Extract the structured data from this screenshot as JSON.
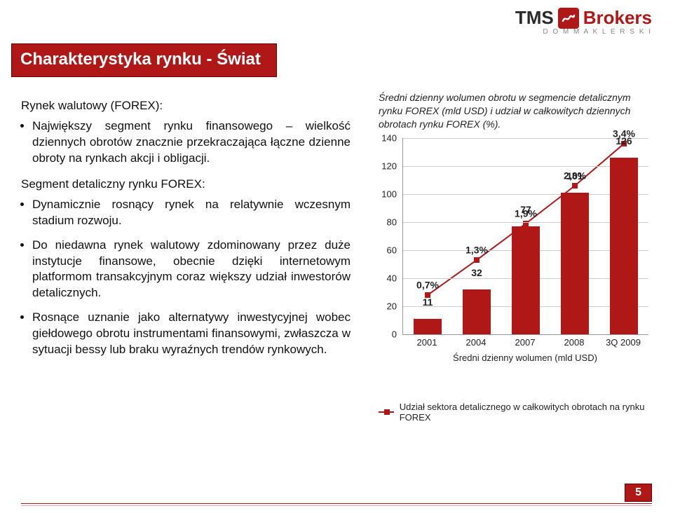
{
  "logo": {
    "tms": "TMS",
    "brokers": "Brokers",
    "sub": "D O M   M A K L E R S K I"
  },
  "title": "Charakterystyka rynku - Świat",
  "left": {
    "lead": "Rynek walutowy (FOREX):",
    "bullets1": [
      "Największy segment rynku finansowego – wielkość dziennych obrotów znacznie przekraczająca łączne dzienne obroty na rynkach akcji i obligacji."
    ],
    "sub_head": "Segment detaliczny rynku FOREX:",
    "bullets2": [
      "Dynamicznie rosnący rynek na relatywnie wczesnym stadium rozwoju.",
      "Do niedawna rynek walutowy zdominowany przez duże instytucje finansowe, obecnie dzięki internetowym platformom transakcyjnym coraz większy udział inwestorów detalicznych.",
      "Rosnące uznanie jako alternatywy inwestycyjnej wobec giełdowego obrotu instrumentami finansowymi, zwłaszcza w sytuacji bessy lub braku wyraźnych trendów rynkowych."
    ]
  },
  "chart": {
    "caption": "Średni dzienny wolumen obrotu w segmencie detalicznym rynku FOREX (mld USD) i udział w całkowitych dziennych obrotach rynku FOREX (%).",
    "type": "bar+line",
    "ylim": [
      0,
      140
    ],
    "ytick_step": 20,
    "yticks": [
      0,
      20,
      40,
      60,
      80,
      100,
      120,
      140
    ],
    "categories": [
      "2001",
      "2004",
      "2007",
      "2008",
      "3Q 2009"
    ],
    "bar_values": [
      11,
      32,
      77,
      101,
      126
    ],
    "bar_color": "#b01818",
    "line_values_pct": [
      0.7,
      1.3,
      1.9,
      2.3,
      3.4
    ],
    "line_y_on_axis": [
      28,
      53,
      79,
      106,
      136
    ],
    "line_color": "#b01818",
    "pct_labels": [
      "0,7%",
      "1,3%",
      "1,9%",
      "2,3%",
      "3,4%"
    ],
    "grid_color": "#cccccc",
    "x_legend1": "Średni dzienny wolumen (mld USD)",
    "x_legend2": "Udział sektora detalicznego w całkowitych obrotach na rynku FOREX"
  },
  "page": "5"
}
